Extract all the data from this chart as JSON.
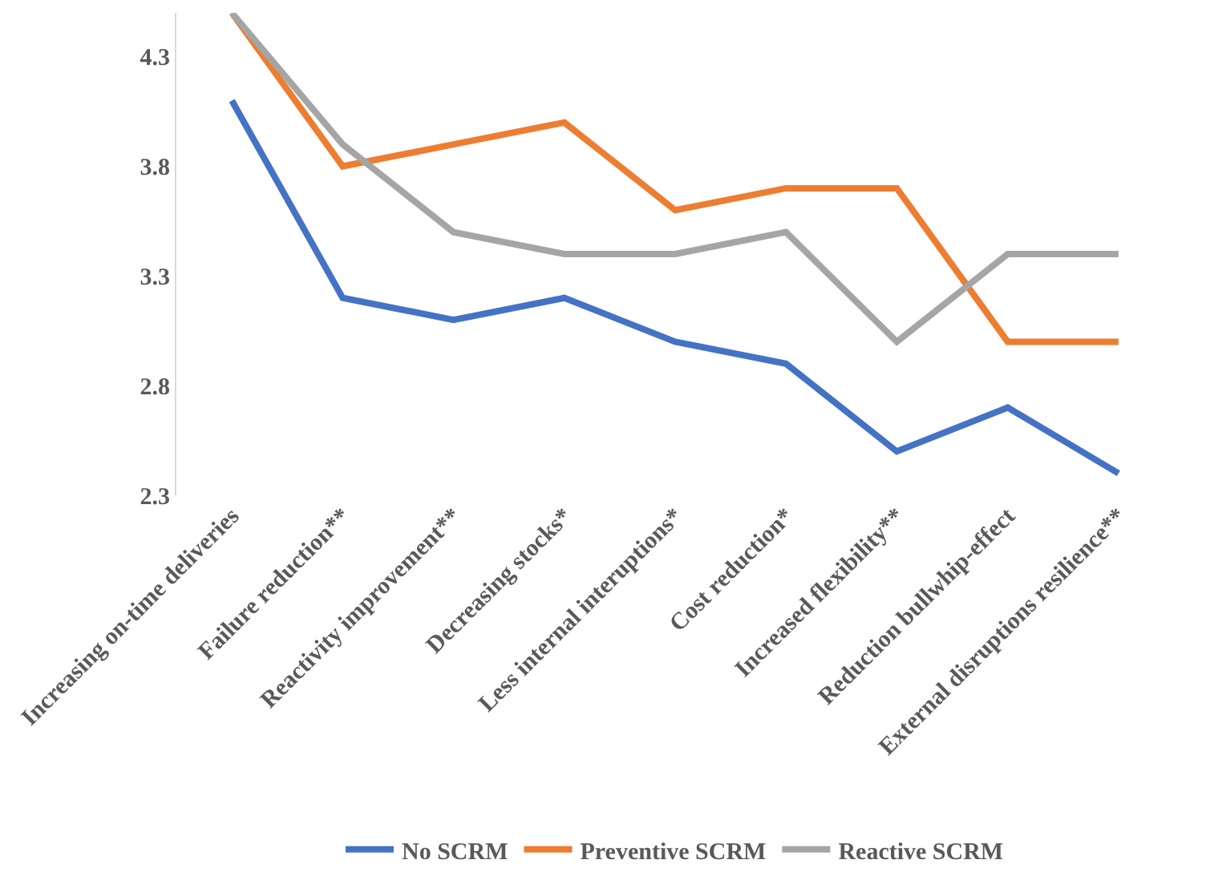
{
  "chart_data": {
    "type": "line",
    "categories": [
      "Increasing on-time deliveries",
      "Failure reduction**",
      "Reactivity improvement**",
      "Decreasing stocks*",
      "Less internal interuptions*",
      "Cost reduction*",
      "Increased flexibility**",
      "Reduction bullwhip-effect",
      "External disruptions resilience**"
    ],
    "series": [
      {
        "name": "No SCRM",
        "color": "#4472c4",
        "values": [
          4.1,
          3.2,
          3.1,
          3.2,
          3.0,
          2.9,
          2.5,
          2.7,
          2.4
        ]
      },
      {
        "name": "Preventive SCRM",
        "color": "#ed7d31",
        "values": [
          4.5,
          3.8,
          3.9,
          4.0,
          3.6,
          3.7,
          3.7,
          3.0,
          3.0
        ]
      },
      {
        "name": "Reactive SCRM",
        "color": "#a5a5a5",
        "values": [
          4.5,
          3.9,
          3.5,
          3.4,
          3.4,
          3.5,
          3.0,
          3.4,
          3.4
        ]
      }
    ],
    "ylim": [
      2.3,
      4.5
    ],
    "yticks": [
      2.3,
      2.8,
      3.3,
      3.8,
      4.3
    ],
    "legend": "bottom",
    "marker": "none",
    "line_style": "solid"
  }
}
